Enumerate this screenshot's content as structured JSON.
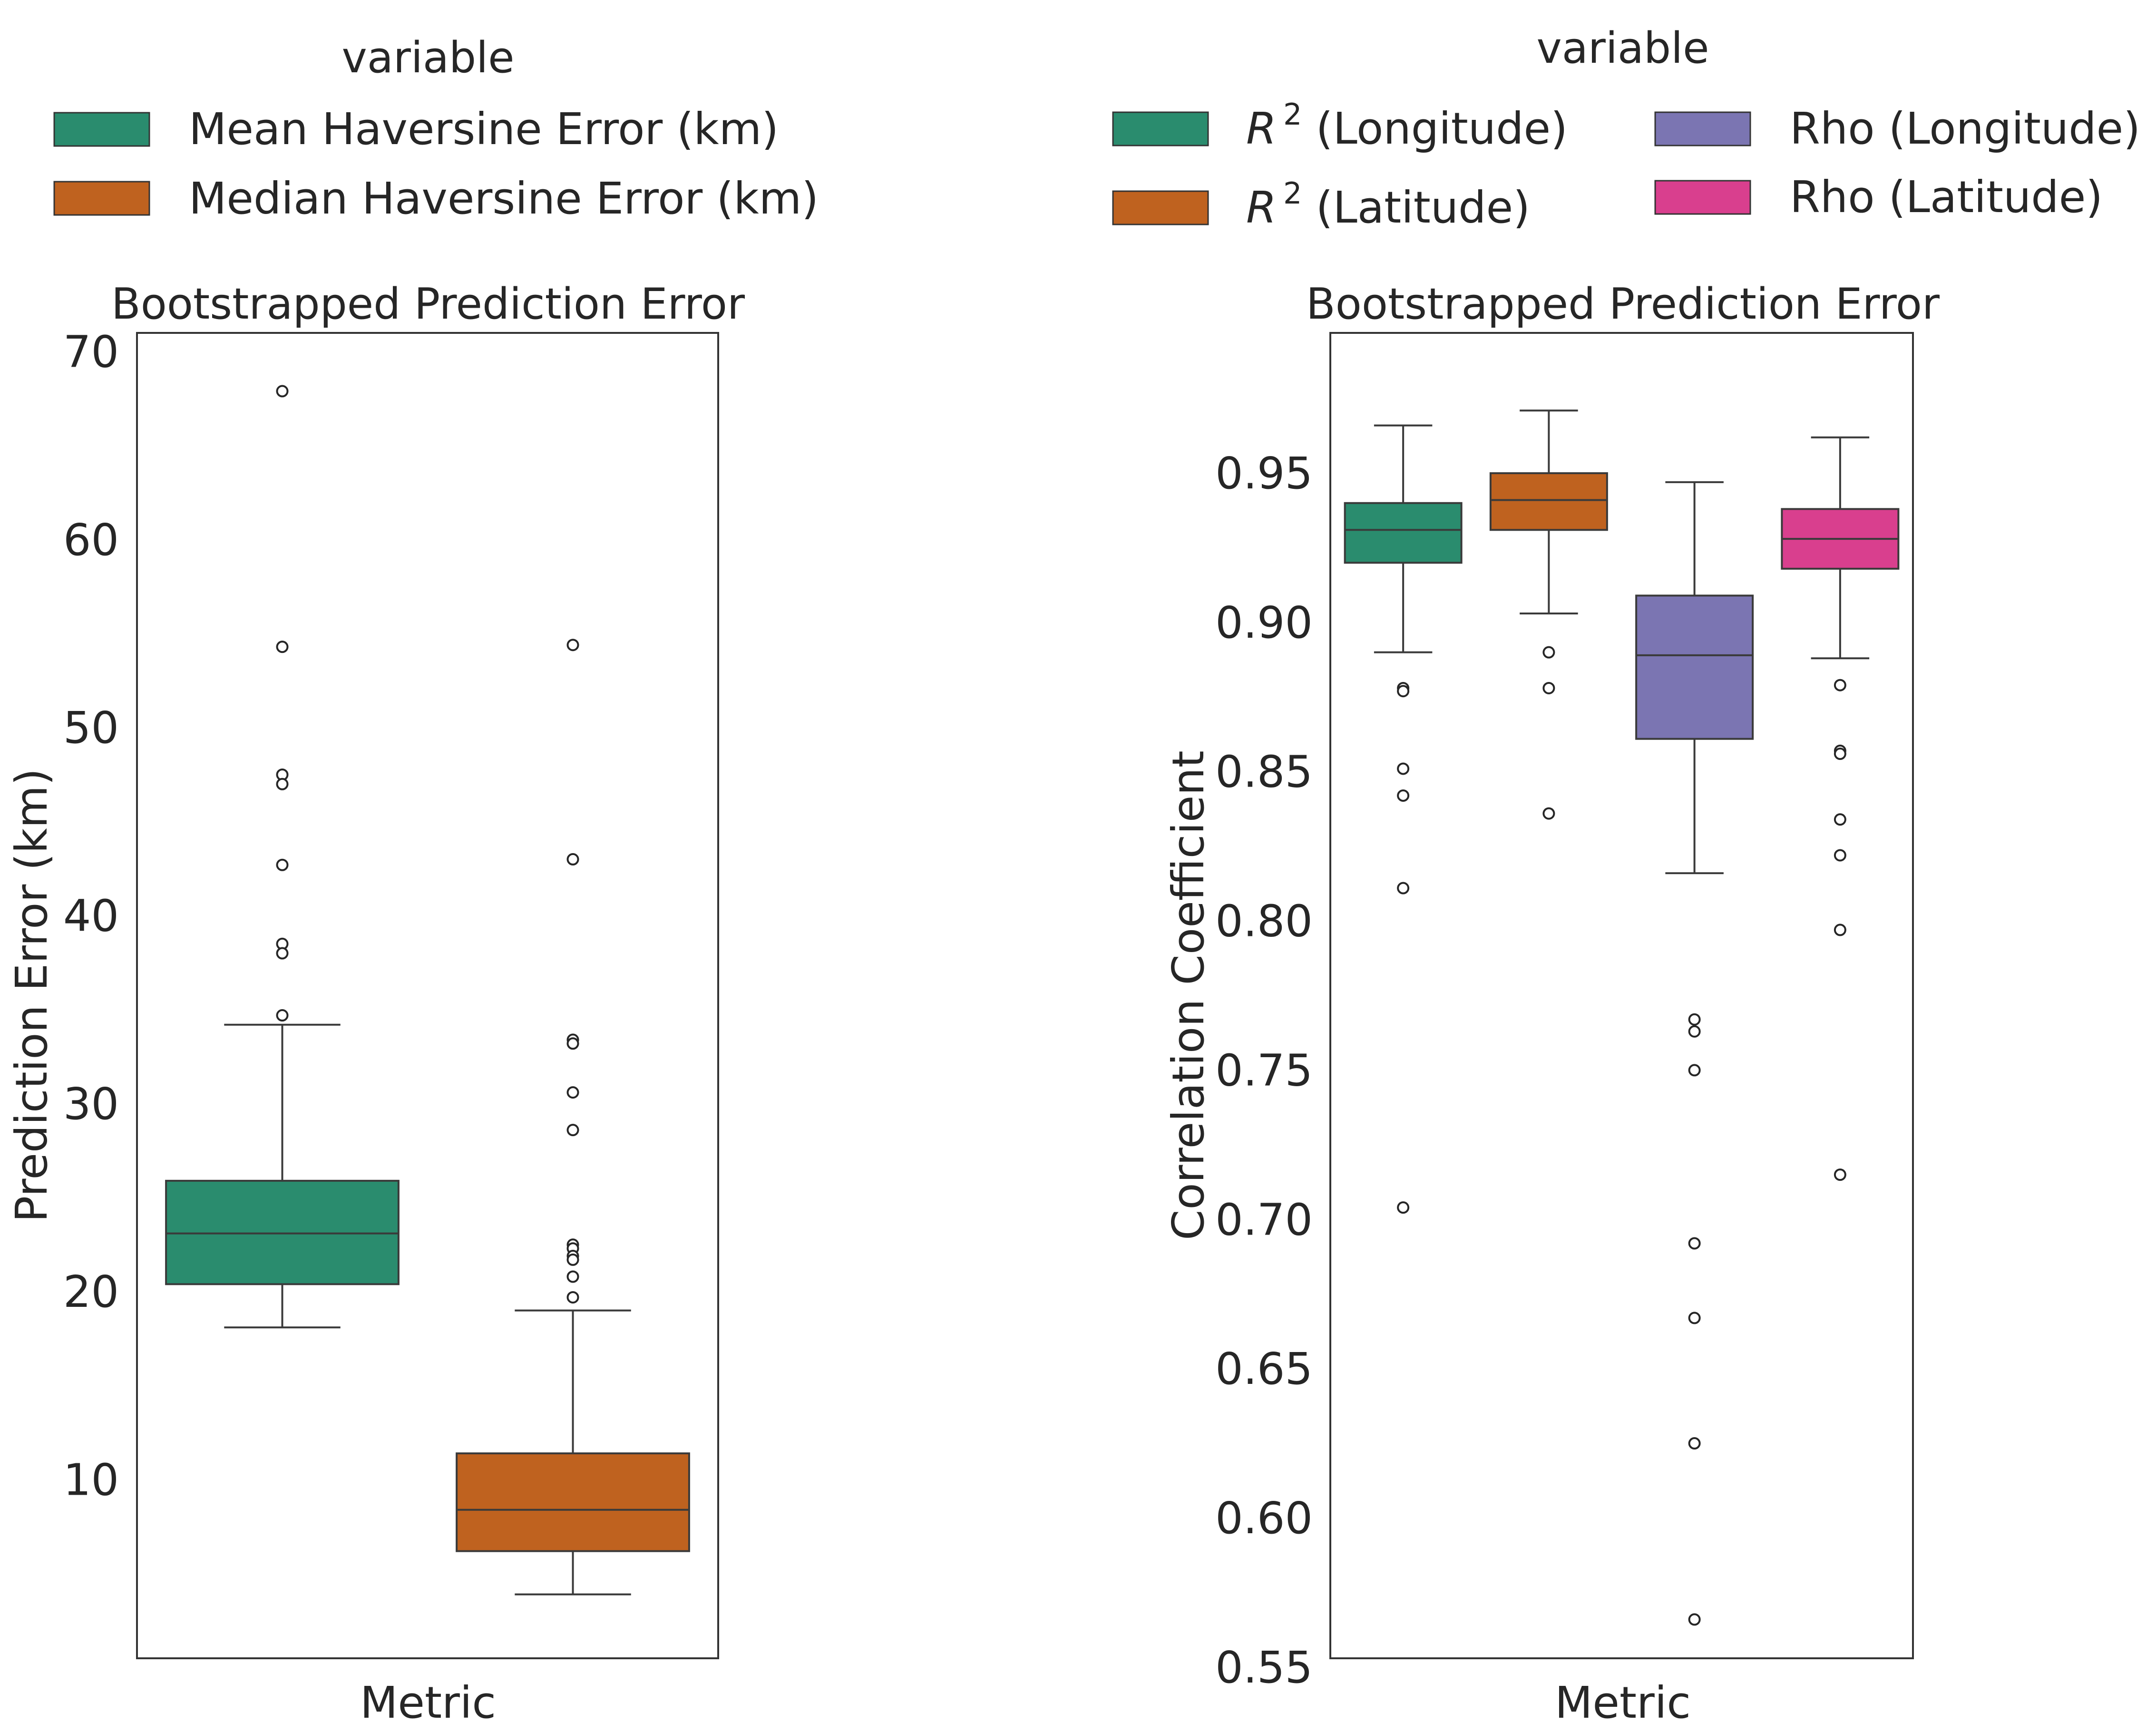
{
  "chart_data": [
    {
      "type": "box",
      "title": "Bootstrapped Prediction Error",
      "xlabel": "Metric",
      "ylabel": "Prediction Error (km)",
      "ylim": [
        0.5,
        71
      ],
      "yticks": [
        10,
        20,
        30,
        40,
        50,
        60,
        70
      ],
      "grid": false,
      "legend": {
        "title": "variable",
        "placement": "top",
        "columns": 1
      },
      "series": [
        {
          "name": "Mean Haversine Error (km)",
          "color": "#2a8c6e",
          "whisker_low": 18.1,
          "q1": 20.4,
          "median": 23.1,
          "q3": 25.9,
          "whisker_high": 34.2,
          "outliers": [
            67.9,
            54.3,
            47.5,
            47.0,
            42.7,
            38.5,
            38.0,
            34.7
          ]
        },
        {
          "name": "Median Haversine Error (km)",
          "color": "#bf621f",
          "whisker_low": 3.9,
          "q1": 6.2,
          "median": 8.4,
          "q3": 11.4,
          "whisker_high": 19.0,
          "outliers": [
            54.4,
            43.0,
            33.4,
            33.2,
            30.6,
            28.6,
            22.5,
            22.3,
            21.9,
            21.7,
            20.8,
            19.7
          ]
        }
      ]
    },
    {
      "type": "box",
      "title": "Bootstrapped Prediction Error",
      "xlabel": "Metric",
      "ylabel": "Correlation Coefficient",
      "ylim": [
        0.553,
        0.997
      ],
      "yticks": [
        0.55,
        0.6,
        0.65,
        0.7,
        0.75,
        0.8,
        0.85,
        0.9,
        0.95
      ],
      "grid": false,
      "legend": {
        "title": "variable",
        "placement": "top",
        "columns": 2
      },
      "series": [
        {
          "name": "R",
          "name_superscript": "2",
          "name_rest": " (Longitude)",
          "color": "#2a8c6e",
          "whisker_low": 0.89,
          "q1": 0.92,
          "median": 0.931,
          "q3": 0.94,
          "whisker_high": 0.966,
          "outliers": [
            0.878,
            0.877,
            0.851,
            0.842,
            0.811,
            0.704
          ]
        },
        {
          "name": "R",
          "name_superscript": "2",
          "name_rest": " (Latitude)",
          "color": "#bf621f",
          "whisker_low": 0.903,
          "q1": 0.931,
          "median": 0.941,
          "q3": 0.95,
          "whisker_high": 0.971,
          "outliers": [
            0.89,
            0.878,
            0.836
          ]
        },
        {
          "name": "Rho (Longitude)",
          "color": "#7b75b2",
          "whisker_low": 0.816,
          "q1": 0.861,
          "median": 0.889,
          "q3": 0.909,
          "whisker_high": 0.947,
          "outliers": [
            0.767,
            0.763,
            0.75,
            0.692,
            0.667,
            0.625,
            0.566
          ]
        },
        {
          "name": "Rho (Latitude)",
          "color": "#d93f8e",
          "whisker_low": 0.888,
          "q1": 0.918,
          "median": 0.928,
          "q3": 0.938,
          "whisker_high": 0.962,
          "outliers": [
            0.879,
            0.857,
            0.856,
            0.834,
            0.822,
            0.797,
            0.715
          ]
        }
      ]
    }
  ]
}
